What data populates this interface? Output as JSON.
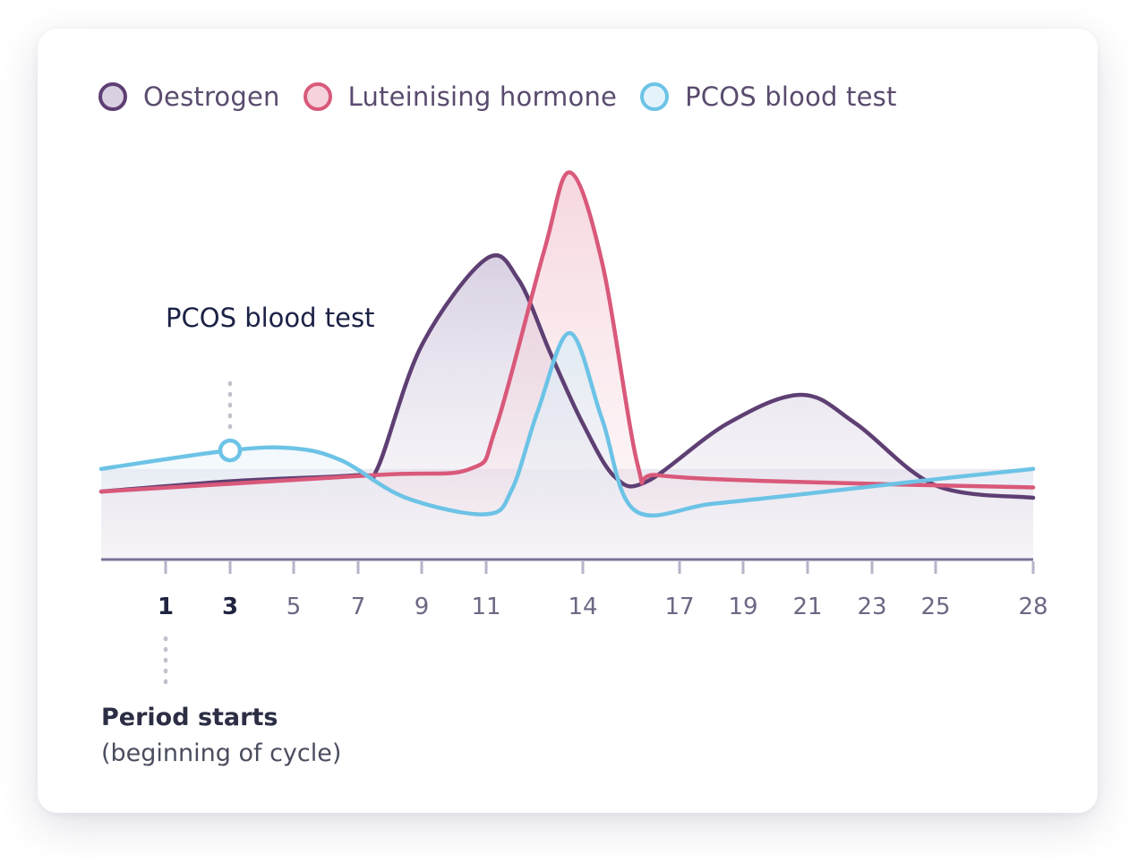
{
  "legend": [
    {
      "label": "Oestrogen",
      "color": "#5e3f73",
      "fill": "#d9d1e2"
    },
    {
      "label": "Luteinising hormone",
      "color": "#d9597a",
      "fill": "#f6d3dc"
    },
    {
      "label": "PCOS blood test",
      "color": "#6cc3e6",
      "fill": "#e4f3fb"
    }
  ],
  "annotations": {
    "test_label": "PCOS blood test",
    "period_title": "Period starts",
    "period_sub": "(beginning of cycle)"
  },
  "colors": {
    "axis": "#7d7398",
    "tick": "#b9b3c8",
    "dotted": "#c5c1cc"
  },
  "chart_data": {
    "type": "line",
    "xlabel": "",
    "ylabel": "",
    "xlim": [
      -1,
      28
    ],
    "ylim": [
      0,
      10
    ],
    "x_ticks": [
      {
        "value": 1,
        "label": "1",
        "bold": true
      },
      {
        "value": 3,
        "label": "3",
        "bold": true
      },
      {
        "value": 5,
        "label": "5"
      },
      {
        "value": 7,
        "label": "7"
      },
      {
        "value": 9,
        "label": "9"
      },
      {
        "value": 11,
        "label": "11"
      },
      {
        "value": 14,
        "label": "14"
      },
      {
        "value": 17,
        "label": "17"
      },
      {
        "value": 19,
        "label": "19"
      },
      {
        "value": 21,
        "label": "21"
      },
      {
        "value": 23,
        "label": "23"
      },
      {
        "value": 25,
        "label": "25"
      },
      {
        "value": 28,
        "label": "28"
      }
    ],
    "series": [
      {
        "name": "Oestrogen",
        "color": "#5e3f73",
        "points": [
          [
            -1,
            1.65
          ],
          [
            3,
            1.9
          ],
          [
            7,
            2.05
          ],
          [
            7.6,
            2.2
          ],
          [
            9,
            5.2
          ],
          [
            11,
            7.3
          ],
          [
            12,
            6.8
          ],
          [
            13,
            5.0
          ],
          [
            14,
            3.3
          ],
          [
            15,
            2.0
          ],
          [
            16,
            1.9
          ],
          [
            18.5,
            3.3
          ],
          [
            20.8,
            4.0
          ],
          [
            22.5,
            3.3
          ],
          [
            25,
            1.8
          ],
          [
            28,
            1.5
          ]
        ]
      },
      {
        "name": "Luteinising hormone",
        "color": "#d9597a",
        "points": [
          [
            -1,
            1.65
          ],
          [
            7.5,
            2.05
          ],
          [
            10.5,
            2.2
          ],
          [
            11.3,
            3.2
          ],
          [
            12.8,
            7.5
          ],
          [
            13.6,
            9.4
          ],
          [
            14.6,
            7.2
          ],
          [
            15.7,
            2.3
          ],
          [
            16.3,
            2.05
          ],
          [
            20,
            1.9
          ],
          [
            28,
            1.75
          ]
        ]
      },
      {
        "name": "PCOS blood test",
        "color": "#6cc3e6",
        "points": [
          [
            -1,
            2.2
          ],
          [
            3,
            2.65
          ],
          [
            5,
            2.7
          ],
          [
            6.5,
            2.4
          ],
          [
            8.5,
            1.5
          ],
          [
            11,
            1.1
          ],
          [
            11.8,
            1.7
          ],
          [
            12.6,
            3.6
          ],
          [
            13.6,
            5.5
          ],
          [
            14.6,
            3.4
          ],
          [
            15.6,
            1.2
          ],
          [
            18,
            1.35
          ],
          [
            21,
            1.6
          ],
          [
            25,
            1.95
          ],
          [
            28,
            2.2
          ]
        ]
      }
    ],
    "marker": {
      "x": 3,
      "y": 2.65,
      "series": "PCOS blood test"
    }
  }
}
